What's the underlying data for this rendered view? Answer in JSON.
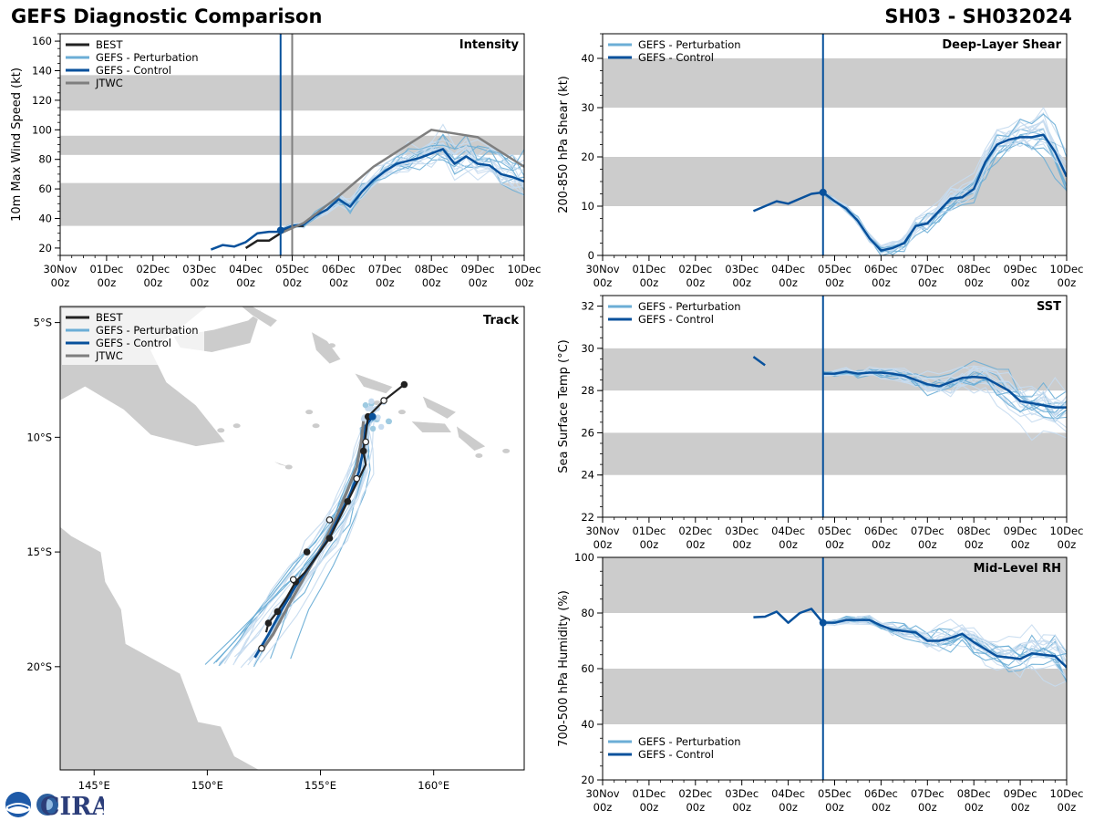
{
  "header": {
    "title_left": "GEFS Diagnostic Comparison",
    "title_right": "SH03 - SH032024"
  },
  "colors": {
    "best": "#222222",
    "perturbation": "#6baed6",
    "control": "#08519c",
    "jtwc": "#7f7f7f",
    "band": "#cccccc",
    "land": "#cccccc"
  },
  "time_labels": [
    "30Nov\n00z",
    "01Dec\n00z",
    "02Dec\n00z",
    "03Dec\n00z",
    "04Dec\n00z",
    "05Dec\n00z",
    "06Dec\n00z",
    "07Dec\n00z",
    "08Dec\n00z",
    "09Dec\n00z",
    "10Dec\n00z"
  ],
  "logo_text": "CIRA",
  "chart_data": [
    {
      "id": "intensity",
      "type": "line",
      "title": "Intensity",
      "ylabel": "10m Max Wind Speed (kt)",
      "xlim": [
        0,
        240
      ],
      "ylim": [
        15,
        165
      ],
      "yticks": [
        20,
        40,
        60,
        80,
        100,
        120,
        140,
        160
      ],
      "bands": [
        [
          35,
          64
        ],
        [
          83,
          96
        ],
        [
          113,
          137
        ]
      ],
      "vlines": [
        {
          "x": 114,
          "series": "control"
        },
        {
          "x": 120,
          "series": "jtwc"
        }
      ],
      "legend": [
        {
          "label": "BEST",
          "series": "best"
        },
        {
          "label": "GEFS - Perturbation",
          "series": "perturbation"
        },
        {
          "label": "GEFS - Control",
          "series": "control"
        },
        {
          "label": "JTWC",
          "series": "jtwc"
        }
      ],
      "series": [
        {
          "name": "BEST",
          "key": "best",
          "points": [
            [
              96,
              20
            ],
            [
              102,
              25
            ],
            [
              108,
              25
            ],
            [
              114,
              30
            ],
            [
              120,
              35
            ],
            [
              126,
              35
            ]
          ]
        },
        {
          "name": "GEFS - Control",
          "key": "control",
          "marker_first": true,
          "points": [
            [
              114,
              32
            ],
            [
              120,
              35
            ],
            [
              126,
              36
            ],
            [
              132,
              42
            ],
            [
              138,
              46
            ],
            [
              144,
              53
            ],
            [
              150,
              48
            ],
            [
              156,
              58
            ],
            [
              162,
              66
            ],
            [
              168,
              72
            ],
            [
              174,
              77
            ],
            [
              180,
              79
            ],
            [
              186,
              81
            ],
            [
              192,
              84
            ],
            [
              198,
              87
            ],
            [
              204,
              77
            ],
            [
              210,
              82
            ],
            [
              216,
              77
            ],
            [
              222,
              76
            ],
            [
              228,
              70
            ],
            [
              234,
              68
            ],
            [
              240,
              65
            ]
          ]
        },
        {
          "name": "JTWC",
          "key": "jtwc",
          "points": [
            [
              114,
              30
            ],
            [
              126,
              37
            ],
            [
              144,
              55
            ],
            [
              162,
              75
            ],
            [
              174,
              85
            ],
            [
              192,
              100
            ],
            [
              216,
              95
            ],
            [
              240,
              75
            ]
          ]
        },
        {
          "name": "early",
          "key": "control",
          "points": [
            [
              78,
              19
            ],
            [
              84,
              22
            ],
            [
              90,
              21
            ],
            [
              96,
              24
            ],
            [
              102,
              30
            ],
            [
              108,
              31
            ],
            [
              114,
              31
            ]
          ]
        }
      ],
      "perturbation_lines": 20
    },
    {
      "id": "shear",
      "type": "line",
      "title": "Deep-Layer Shear",
      "ylabel": "200-850 hPa Shear (kt)",
      "xlim": [
        0,
        240
      ],
      "ylim": [
        0,
        45
      ],
      "yticks": [
        0,
        10,
        20,
        30,
        40
      ],
      "bands": [
        [
          10,
          20
        ],
        [
          30,
          40
        ]
      ],
      "vlines": [
        {
          "x": 114,
          "series": "control"
        }
      ],
      "legend": [
        {
          "label": "GEFS - Perturbation",
          "series": "perturbation"
        },
        {
          "label": "GEFS - Control",
          "series": "control"
        }
      ],
      "series": [
        {
          "name": "GEFS - Control",
          "key": "control",
          "marker_at": 114,
          "points": [
            [
              78,
              9
            ],
            [
              84,
              10
            ],
            [
              90,
              11
            ],
            [
              96,
              10.5
            ],
            [
              102,
              11.5
            ],
            [
              108,
              12.5
            ],
            [
              114,
              12.8
            ],
            [
              120,
              11
            ],
            [
              126,
              9.5
            ],
            [
              132,
              7
            ],
            [
              138,
              3.5
            ],
            [
              144,
              1
            ],
            [
              150,
              1.5
            ],
            [
              156,
              2.5
            ],
            [
              162,
              6
            ],
            [
              168,
              6.5
            ],
            [
              174,
              9
            ],
            [
              180,
              11.5
            ],
            [
              186,
              11.8
            ],
            [
              192,
              13.5
            ],
            [
              198,
              19
            ],
            [
              204,
              22.5
            ],
            [
              210,
              23.5
            ],
            [
              216,
              24
            ],
            [
              222,
              24
            ],
            [
              228,
              24.5
            ],
            [
              234,
              21
            ],
            [
              240,
              16
            ]
          ]
        }
      ],
      "perturbation_lines": 20
    },
    {
      "id": "sst",
      "type": "line",
      "title": "SST",
      "ylabel": "Sea Surface Temp (°C)",
      "xlim": [
        0,
        240
      ],
      "ylim": [
        22,
        32.5
      ],
      "yticks": [
        22,
        24,
        26,
        28,
        30,
        32
      ],
      "bands": [
        [
          24,
          26
        ],
        [
          28,
          30
        ]
      ],
      "vlines": [
        {
          "x": 114,
          "series": "control"
        }
      ],
      "legend": [
        {
          "label": "GEFS - Perturbation",
          "series": "perturbation"
        },
        {
          "label": "GEFS - Control",
          "series": "control"
        }
      ],
      "series": [
        {
          "name": "GEFS - Control (early)",
          "key": "control",
          "points": [
            [
              78,
              29.6
            ],
            [
              84,
              29.2
            ]
          ]
        },
        {
          "name": "GEFS - Control",
          "key": "control",
          "points": [
            [
              114,
              28.8
            ],
            [
              120,
              28.8
            ],
            [
              126,
              28.9
            ],
            [
              132,
              28.8
            ],
            [
              138,
              28.85
            ],
            [
              144,
              28.85
            ],
            [
              150,
              28.8
            ],
            [
              156,
              28.7
            ],
            [
              162,
              28.5
            ],
            [
              168,
              28.3
            ],
            [
              174,
              28.2
            ],
            [
              180,
              28.4
            ],
            [
              186,
              28.6
            ],
            [
              192,
              28.65
            ],
            [
              198,
              28.6
            ],
            [
              204,
              28.3
            ],
            [
              210,
              28
            ],
            [
              216,
              27.5
            ],
            [
              222,
              27.4
            ],
            [
              228,
              27.3
            ],
            [
              234,
              27.2
            ],
            [
              240,
              27.2
            ]
          ]
        }
      ],
      "perturbation_lines": 20
    },
    {
      "id": "rh",
      "type": "line",
      "title": "Mid-Level RH",
      "ylabel": "700-500 hPa Humidity (%)",
      "xlim": [
        0,
        240
      ],
      "ylim": [
        20,
        100
      ],
      "yticks": [
        20,
        40,
        60,
        80,
        100
      ],
      "bands": [
        [
          40,
          60
        ],
        [
          80,
          100
        ]
      ],
      "vlines": [
        {
          "x": 114,
          "series": "control"
        }
      ],
      "legend": [
        {
          "label": "GEFS - Perturbation",
          "series": "perturbation"
        },
        {
          "label": "GEFS - Control",
          "series": "control"
        }
      ],
      "legend_position": "bottom-left",
      "series": [
        {
          "name": "GEFS - Control",
          "key": "control",
          "marker_at": 114,
          "points": [
            [
              78,
              78.5
            ],
            [
              84,
              78.7
            ],
            [
              90,
              80.5
            ],
            [
              96,
              76.5
            ],
            [
              102,
              80
            ],
            [
              108,
              81.5
            ],
            [
              114,
              76.5
            ],
            [
              120,
              76.5
            ],
            [
              126,
              77.5
            ],
            [
              132,
              77.5
            ],
            [
              138,
              77.5
            ],
            [
              144,
              75.5
            ],
            [
              150,
              74
            ],
            [
              156,
              73.5
            ],
            [
              162,
              73
            ],
            [
              168,
              70
            ],
            [
              174,
              70
            ],
            [
              180,
              71
            ],
            [
              186,
              72.5
            ],
            [
              192,
              69.5
            ],
            [
              198,
              67
            ],
            [
              204,
              64.5
            ],
            [
              210,
              64
            ],
            [
              216,
              63.5
            ],
            [
              222,
              65.5
            ],
            [
              228,
              65
            ],
            [
              234,
              64.5
            ],
            [
              240,
              60.5
            ]
          ]
        }
      ],
      "perturbation_lines": 20
    },
    {
      "id": "track",
      "type": "scatter",
      "title": "Track",
      "xlim": [
        143.5,
        164
      ],
      "ylim": [
        -24.5,
        -4.3
      ],
      "xticks": [
        145,
        150,
        155,
        160
      ],
      "xtick_labels": [
        "145°E",
        "150°E",
        "155°E",
        "160°E"
      ],
      "yticks": [
        -5,
        -10,
        -15,
        -20
      ],
      "ytick_labels": [
        "5°S",
        "10°S",
        "15°S",
        "20°S"
      ],
      "legend": [
        {
          "label": "BEST",
          "series": "best"
        },
        {
          "label": "GEFS - Perturbation",
          "series": "perturbation"
        },
        {
          "label": "GEFS - Control",
          "series": "control"
        },
        {
          "label": "JTWC",
          "series": "jtwc"
        }
      ],
      "best_track": [
        [
          158.7,
          -7.7
        ],
        [
          157.8,
          -8.4
        ],
        [
          157.1,
          -9.1
        ],
        [
          157.0,
          -9.9
        ],
        [
          156.9,
          -10.6
        ],
        [
          157.0,
          -11.2
        ],
        [
          156.6,
          -12.0
        ],
        [
          156.2,
          -12.8
        ],
        [
          155.8,
          -13.6
        ],
        [
          155.4,
          -14.4
        ],
        [
          154.9,
          -15.1
        ],
        [
          154.3,
          -15.9
        ],
        [
          153.9,
          -16.3
        ],
        [
          153.5,
          -17.0
        ],
        [
          153.1,
          -17.6
        ],
        [
          152.7,
          -18.1
        ],
        [
          152.6,
          -18.5
        ]
      ],
      "control_track": [
        [
          157.3,
          -9.1
        ],
        [
          157.0,
          -9.5
        ],
        [
          156.9,
          -10.5
        ],
        [
          156.7,
          -11.5
        ],
        [
          156.3,
          -12.5
        ],
        [
          155.8,
          -13.5
        ],
        [
          155.3,
          -14.5
        ],
        [
          154.6,
          -15.5
        ],
        [
          153.9,
          -16.5
        ],
        [
          153.3,
          -17.5
        ],
        [
          152.7,
          -18.6
        ],
        [
          152.1,
          -19.6
        ]
      ],
      "jtwc_track": [
        [
          156.9,
          -9.3
        ],
        [
          156.8,
          -10.2
        ],
        [
          156.6,
          -11.3
        ],
        [
          156.2,
          -12.3
        ],
        [
          155.7,
          -13.5
        ],
        [
          155.1,
          -14.7
        ],
        [
          154.4,
          -15.9
        ],
        [
          153.6,
          -17.3
        ],
        [
          152.9,
          -18.6
        ],
        [
          152.4,
          -19.3
        ]
      ],
      "best_markers": [
        [
          158.7,
          -7.7
        ],
        [
          157.1,
          -9.1
        ],
        [
          156.9,
          -10.6
        ],
        [
          156.2,
          -12.8
        ],
        [
          155.4,
          -14.4
        ],
        [
          154.4,
          -15.0
        ],
        [
          153.9,
          -16.3
        ],
        [
          153.1,
          -17.6
        ],
        [
          152.7,
          -18.1
        ]
      ],
      "jtwc_markers": [
        [
          157.8,
          -8.4
        ],
        [
          157.0,
          -10.2
        ],
        [
          156.6,
          -11.8
        ],
        [
          155.4,
          -13.6
        ],
        [
          153.8,
          -16.2
        ],
        [
          152.4,
          -19.2
        ]
      ],
      "perturbation_lines": 20
    }
  ]
}
